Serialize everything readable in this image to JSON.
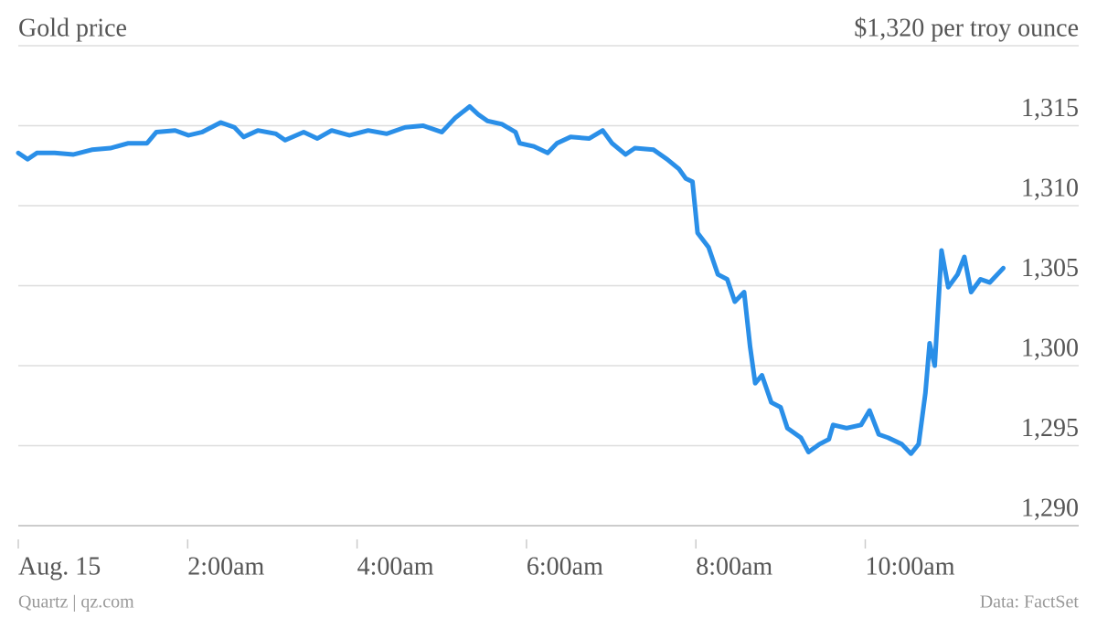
{
  "chart_data": {
    "type": "line",
    "title": "Gold price",
    "source": "Data: FactSet",
    "credit": "Quartz | qz.com",
    "x": [
      0,
      0.11,
      0.22,
      0.43,
      0.65,
      0.87,
      1.09,
      1.3,
      1.52,
      1.63,
      1.85,
      2.01,
      2.17,
      2.39,
      2.55,
      2.66,
      2.83,
      3.04,
      3.15,
      3.37,
      3.53,
      3.7,
      3.91,
      4.13,
      4.35,
      4.57,
      4.78,
      5.0,
      5.16,
      5.33,
      5.43,
      5.54,
      5.71,
      5.87,
      5.92,
      6.09,
      6.25,
      6.36,
      6.52,
      6.74,
      6.9,
      7.01,
      7.17,
      7.28,
      7.5,
      7.66,
      7.8,
      7.88,
      7.96,
      8.02,
      8.15,
      8.26,
      8.37,
      8.46,
      8.57,
      8.64,
      8.7,
      8.78,
      8.89,
      9.0,
      9.08,
      9.24,
      9.33,
      9.46,
      9.57,
      9.62,
      9.78,
      9.95,
      10.05,
      10.16,
      10.27,
      10.43,
      10.54,
      10.63,
      10.71,
      10.76,
      10.82,
      10.9,
      10.98,
      11.09,
      11.17,
      11.25,
      11.36,
      11.47,
      11.63
    ],
    "series": [
      {
        "name": "Gold price",
        "color": "#2a8fe8",
        "values": [
          1313.3,
          1312.9,
          1313.3,
          1313.3,
          1313.2,
          1313.5,
          1313.6,
          1313.9,
          1313.9,
          1314.6,
          1314.7,
          1314.4,
          1314.6,
          1315.2,
          1314.9,
          1314.3,
          1314.7,
          1314.5,
          1314.1,
          1314.6,
          1314.2,
          1314.7,
          1314.4,
          1314.7,
          1314.5,
          1314.9,
          1315.0,
          1314.6,
          1315.5,
          1316.2,
          1315.7,
          1315.3,
          1315.1,
          1314.6,
          1313.9,
          1313.7,
          1313.3,
          1313.9,
          1314.3,
          1314.2,
          1314.7,
          1313.9,
          1313.2,
          1313.6,
          1313.5,
          1312.9,
          1312.3,
          1311.7,
          1311.5,
          1308.3,
          1307.4,
          1305.7,
          1305.4,
          1304.0,
          1304.6,
          1301.2,
          1298.9,
          1299.4,
          1297.7,
          1297.4,
          1296.1,
          1295.5,
          1294.6,
          1295.1,
          1295.4,
          1296.3,
          1296.1,
          1296.3,
          1297.2,
          1295.7,
          1295.5,
          1295.1,
          1294.5,
          1295.1,
          1298.3,
          1301.4,
          1300.0,
          1307.2,
          1304.9,
          1305.7,
          1306.8,
          1304.6,
          1305.4,
          1305.2,
          1306.1
        ]
      }
    ],
    "xlim": [
      0,
      12.52
    ],
    "xticks": [
      {
        "value": 0,
        "label": "Aug. 15"
      },
      {
        "value": 2,
        "label": "2:00am"
      },
      {
        "value": 4,
        "label": "4:00am"
      },
      {
        "value": 6,
        "label": "6:00am"
      },
      {
        "value": 8,
        "label": "8:00am"
      },
      {
        "value": 10,
        "label": "10:00am"
      }
    ],
    "ylim": [
      1290,
      1320
    ],
    "yticks": [
      {
        "value": 1290,
        "label": "1,290"
      },
      {
        "value": 1295,
        "label": "1,295"
      },
      {
        "value": 1300,
        "label": "1,300"
      },
      {
        "value": 1305,
        "label": "1,305"
      },
      {
        "value": 1310,
        "label": "1,310"
      },
      {
        "value": 1315,
        "label": "1,315"
      },
      {
        "value": 1320,
        "label": "$1,320 per troy ounce"
      }
    ],
    "grid": true
  }
}
